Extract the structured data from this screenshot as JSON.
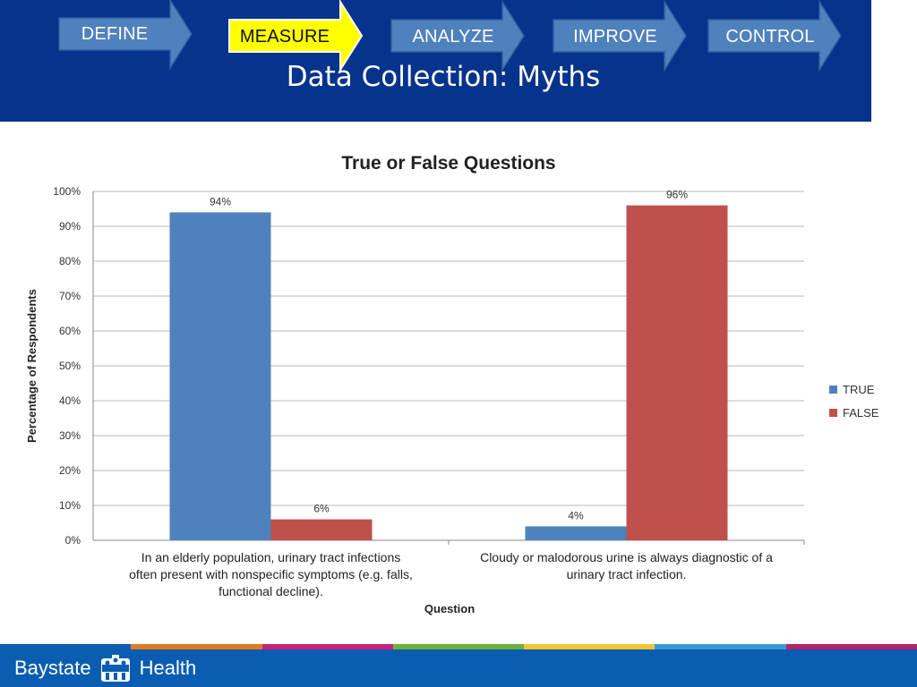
{
  "header": {
    "steps": [
      {
        "label": "DEFINE",
        "active": false
      },
      {
        "label": "MEASURE",
        "active": true
      },
      {
        "label": "ANALYZE",
        "active": false
      },
      {
        "label": "IMPROVE",
        "active": false
      },
      {
        "label": "CONTROL",
        "active": false
      }
    ],
    "title": "Data Collection: Myths"
  },
  "colors": {
    "header_bg": "#06338c",
    "step_fill": "#4f81bd",
    "step_active_fill": "#ffff00",
    "true_series": "#4f81bd",
    "false_series": "#c0504d",
    "footer_bg": "#0a5db0",
    "footer_stripes": [
      "#0a5db0",
      "#e07b25",
      "#c8217a",
      "#6bb13b",
      "#f4c531",
      "#3d9ad8",
      "#b5216b"
    ]
  },
  "footer": {
    "brand_left": "Baystate",
    "brand_right": "Health"
  },
  "chart_data": {
    "type": "bar",
    "title": "True or False Questions",
    "xlabel": "Question",
    "ylabel": "Percentage of Respondents",
    "ylim": [
      0,
      100
    ],
    "yticks": [
      "0%",
      "10%",
      "20%",
      "30%",
      "40%",
      "50%",
      "60%",
      "70%",
      "80%",
      "90%",
      "100%"
    ],
    "grid": true,
    "legend_position": "right",
    "categories": [
      "In an elderly population, urinary tract infections often present with nonspecific symptoms (e.g. falls, functional decline).",
      "Cloudy or malodorous urine is always diagnostic of a urinary tract infection."
    ],
    "series": [
      {
        "name": "TRUE",
        "values": [
          94,
          4
        ],
        "labels": [
          "94%",
          "4%"
        ]
      },
      {
        "name": "FALSE",
        "values": [
          6,
          96
        ],
        "labels": [
          "6%",
          "96%"
        ]
      }
    ]
  }
}
